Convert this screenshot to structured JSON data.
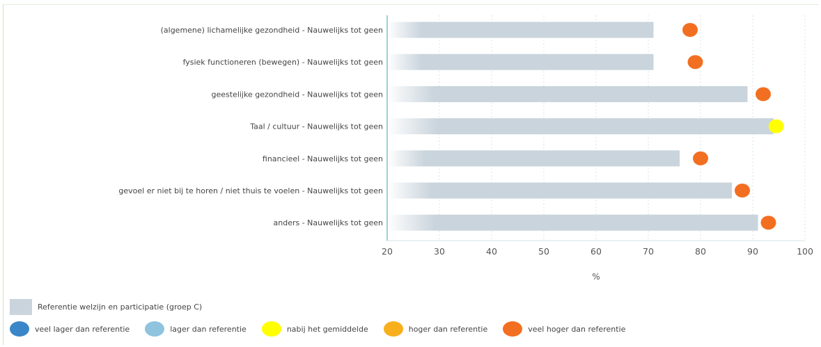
{
  "chart_data": {
    "type": "bar",
    "orientation": "horizontal",
    "categories": [
      "(algemene) lichamelijke gezondheid - Nauwelijks tot geen",
      "fysiek functioneren (bewegen) - Nauwelijks tot geen",
      "geestelijke gezondheid - Nauwelijks tot geen",
      "Taal / cultuur - Nauwelijks tot geen",
      "financieel - Nauwelijks tot geen",
      "gevoel er niet bij te horen / niet thuis te voelen - Nauwelijks tot geen",
      "anders - Nauwelijks tot geen"
    ],
    "series": [
      {
        "name": "Referentie welzijn en participatie (groep C)",
        "values": [
          71,
          71,
          89,
          94,
          76,
          86,
          91
        ]
      }
    ],
    "markers": [
      {
        "value": 78,
        "status": "veel hoger dan referentie"
      },
      {
        "value": 79,
        "status": "veel hoger dan referentie"
      },
      {
        "value": 92,
        "status": "veel hoger dan referentie"
      },
      {
        "value": 94.5,
        "status": "nabij het gemiddelde"
      },
      {
        "value": 80,
        "status": "veel hoger dan referentie"
      },
      {
        "value": 88,
        "status": "veel hoger dan referentie"
      },
      {
        "value": 93,
        "status": "veel hoger dan referentie"
      }
    ],
    "xlim": [
      20,
      100
    ],
    "xticks": [
      20,
      30,
      40,
      50,
      60,
      70,
      80,
      90,
      100
    ],
    "xlabel": "%",
    "grid": "vertical dotted",
    "legend_position": "bottom-left"
  },
  "legend": {
    "reference_label": "Referentie welzijn en participatie (groep C)",
    "reference_color": "#c9d4dc",
    "status_items": [
      {
        "label": "veel lager dan referentie",
        "color": "#3a86c8"
      },
      {
        "label": "lager dan referentie",
        "color": "#8fc3de"
      },
      {
        "label": "nabij het gemiddelde",
        "color": "#ffff00"
      },
      {
        "label": "hoger dan referentie",
        "color": "#f7b01c"
      },
      {
        "label": "veel hoger dan referentie",
        "color": "#f26f21"
      }
    ]
  }
}
